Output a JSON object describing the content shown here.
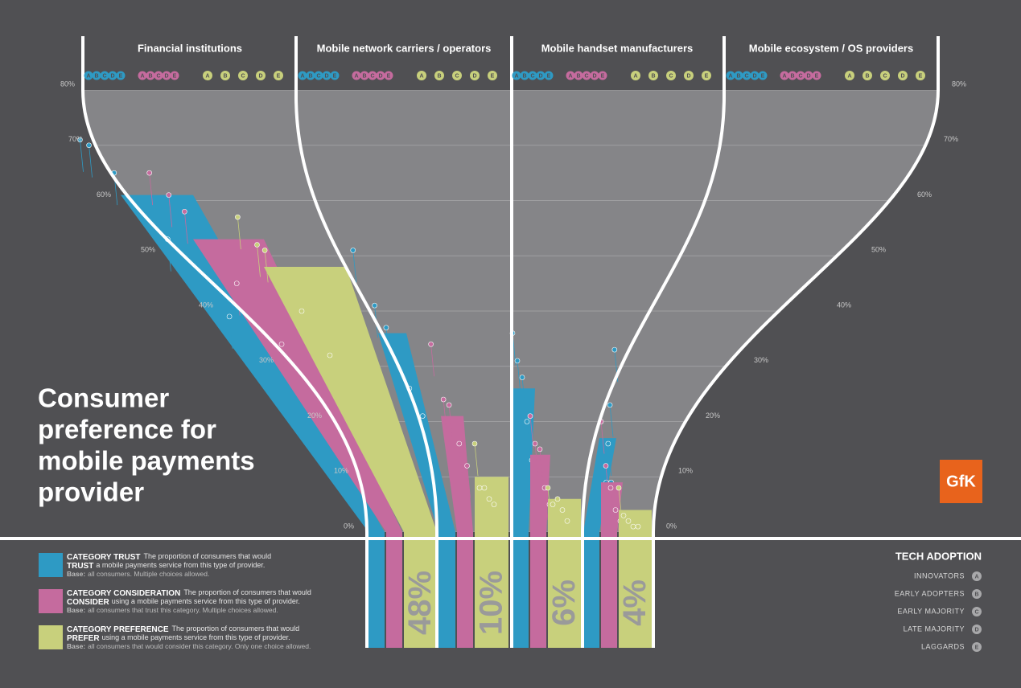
{
  "title_lines": [
    "Consumer",
    "preference for",
    "mobile payments",
    "provider"
  ],
  "logo": "GfK",
  "colors": {
    "trust": "#2e9ac4",
    "consider": "#c56b9e",
    "prefer": "#c8d07c"
  },
  "adopter_letters": [
    "A",
    "B",
    "C",
    "D",
    "E"
  ],
  "y_axis": {
    "ylim": [
      0,
      80
    ],
    "yticks": [
      {
        "value": 0,
        "label": "0%"
      },
      {
        "value": 10,
        "label": "10%"
      },
      {
        "value": 20,
        "label": "20%"
      },
      {
        "value": 30,
        "label": "30%"
      },
      {
        "value": 40,
        "label": "40%"
      },
      {
        "value": 50,
        "label": "50%"
      },
      {
        "value": 60,
        "label": "60%"
      },
      {
        "value": 70,
        "label": "70%"
      },
      {
        "value": 80,
        "label": "80%"
      }
    ]
  },
  "panels": [
    {
      "name": "Financial institutions",
      "trust": 61,
      "consider": 53,
      "prefer": 48,
      "prefer_label": "48%",
      "dots": {
        "trust": [
          71,
          70,
          65,
          53,
          39
        ],
        "consider": [
          65,
          61,
          58,
          45,
          34
        ],
        "prefer": [
          57,
          52,
          51,
          40,
          32
        ]
      }
    },
    {
      "name": "Mobile network carriers / operators",
      "trust": 36,
      "consider": 21,
      "prefer": 10,
      "prefer_label": "10%",
      "dots": {
        "trust": [
          51,
          41,
          37,
          26,
          21
        ],
        "consider": [
          34,
          24,
          23,
          16,
          12
        ],
        "prefer": [
          16,
          8,
          8,
          6,
          5
        ]
      }
    },
    {
      "name": "Mobile handset manufacturers",
      "trust": 26,
      "consider": 14,
      "prefer": 6,
      "prefer_label": "6%",
      "dots": {
        "trust": [
          36,
          31,
          28,
          20,
          13
        ],
        "consider": [
          21,
          16,
          15,
          8,
          5
        ],
        "prefer": [
          8,
          5,
          6,
          4,
          2
        ]
      }
    },
    {
      "name": "Mobile ecosystem / OS providers",
      "trust": 17,
      "consider": 9,
      "prefer": 4,
      "prefer_label": "4%",
      "dots": {
        "trust": [
          33,
          23,
          16,
          9,
          9
        ],
        "consider": [
          20,
          12,
          8,
          4,
          2
        ],
        "prefer": [
          8,
          3,
          2,
          1,
          1
        ]
      }
    }
  ],
  "legend": [
    {
      "title": "CATEGORY TRUST",
      "line1": "The proportion of consumers that would",
      "keyword": "TRUST",
      "line2": "a mobile payments service from this type of provider.",
      "base_label": "Base:",
      "base": "all consumers. Multiple choices allowed."
    },
    {
      "title": "CATEGORY CONSIDERATION",
      "line1": "The proportion of consumers that would",
      "keyword": "CONSIDER",
      "line2": "using a mobile payments service from this type of provider.",
      "base_label": "Base:",
      "base": "all consumers that trust this category. Multiple choices allowed."
    },
    {
      "title": "CATEGORY PREFERENCE",
      "line1": "The proportion of consumers that would",
      "keyword": "PREFER",
      "line2": "using a mobile payments service from this type of provider.",
      "base_label": "Base:",
      "base": "all consumers that would consider this category. Only one choice allowed."
    }
  ],
  "tech_adoption": {
    "title": "TECH ADOPTION",
    "items": [
      "INNOVATORS",
      "EARLY ADOPTERS",
      "EARLY MAJORITY",
      "LATE MAJORITY",
      "LAGGARDS"
    ]
  }
}
